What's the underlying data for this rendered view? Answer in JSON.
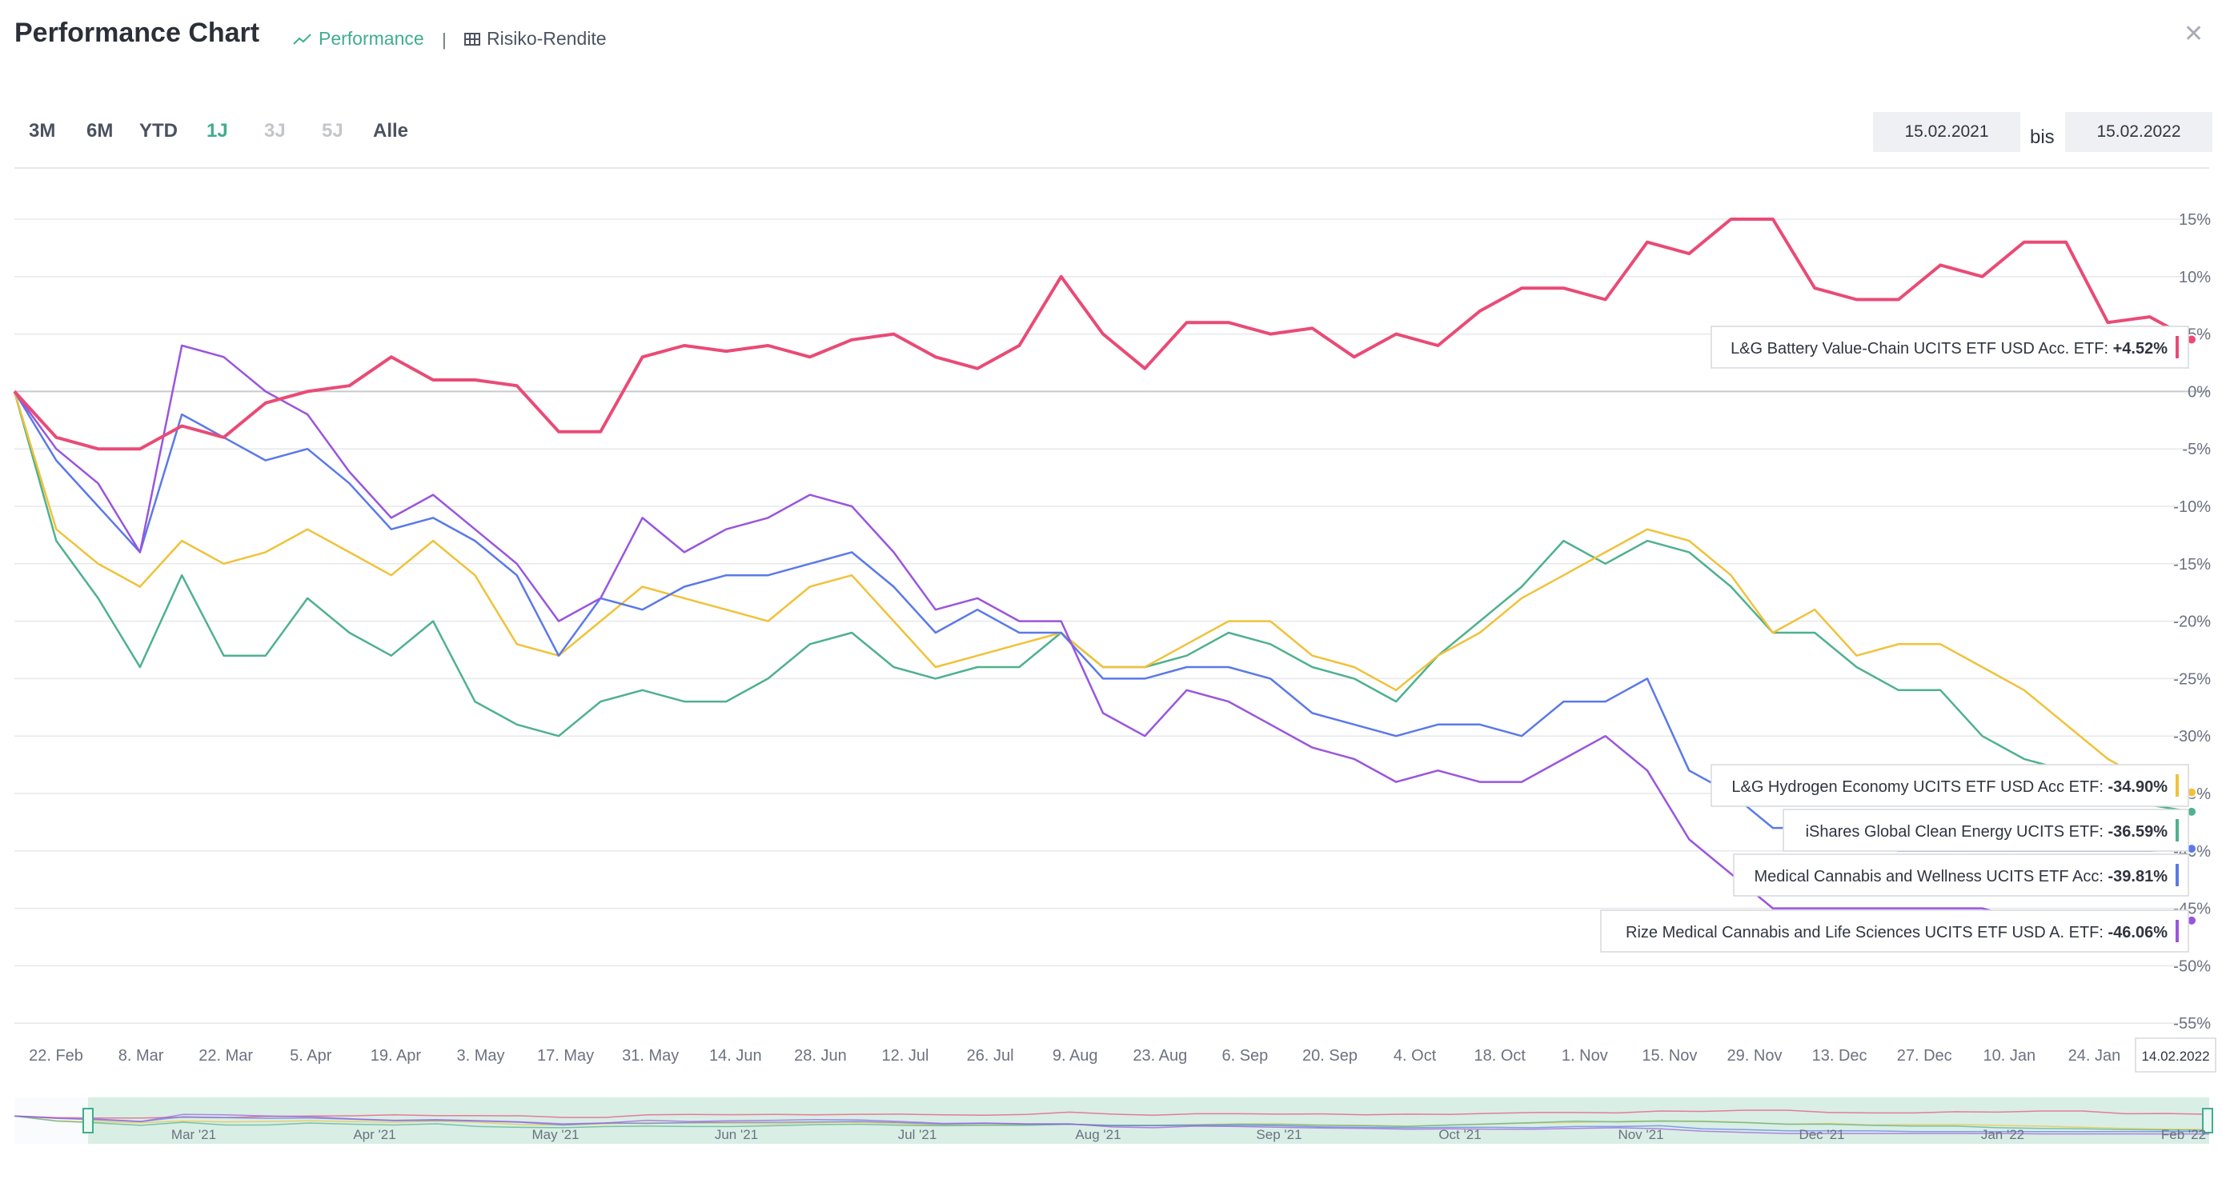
{
  "header": {
    "title": "Performance Chart",
    "tab_performance": "Performance",
    "tab_separator": "|",
    "tab_risk": "Risiko-Rendite"
  },
  "ranges": [
    {
      "label": "3M",
      "state": "normal"
    },
    {
      "label": "6M",
      "state": "normal"
    },
    {
      "label": "YTD",
      "state": "normal"
    },
    {
      "label": "1J",
      "state": "active"
    },
    {
      "label": "3J",
      "state": "disabled"
    },
    {
      "label": "5J",
      "state": "disabled"
    },
    {
      "label": "Alle",
      "state": "normal"
    }
  ],
  "date_range": {
    "from": "15.02.2021",
    "separator": "bis",
    "to": "15.02.2022"
  },
  "colors": {
    "battery": "#e94b76",
    "hydrogen": "#f0c23b",
    "clean_energy": "#4fb18e",
    "cannabis_wellness": "#5b79e8",
    "rize_cannabis": "#9a55dd",
    "accent": "#3fae8c"
  },
  "chart_data": {
    "type": "line",
    "y_unit": "%",
    "ylim": [
      -55,
      15
    ],
    "y_ticks": [
      "15%",
      "10%",
      "5%",
      "0%",
      "-5%",
      "-10%",
      "-15%",
      "-20%",
      "-25%",
      "-30%",
      "-35%",
      "-40%",
      "-45%",
      "-50%",
      "-55%"
    ],
    "x_ticks": [
      "22. Feb",
      "8. Mar",
      "22. Mar",
      "5. Apr",
      "19. Apr",
      "3. May",
      "17. May",
      "31. May",
      "14. Jun",
      "28. Jun",
      "12. Jul",
      "26. Jul",
      "9. Aug",
      "23. Aug",
      "6. Sep",
      "20. Sep",
      "4. Oct",
      "18. Oct",
      "1. Nov",
      "15. Nov",
      "29. Nov",
      "13. Dec",
      "27. Dec",
      "10. Jan",
      "24. Jan"
    ],
    "end_date_label": "14.02.2022",
    "navigator_labels": [
      "Mar '21",
      "Apr '21",
      "May '21",
      "Jun '21",
      "Jul '21",
      "Aug '21",
      "Sep '21",
      "Oct '21",
      "Nov '21",
      "Dec '21",
      "Jan '22",
      "Feb '22"
    ],
    "x": [
      "15.02.2021",
      "22.02.2021",
      "01.03.2021",
      "08.03.2021",
      "15.03.2021",
      "22.03.2021",
      "29.03.2021",
      "05.04.2021",
      "12.04.2021",
      "19.04.2021",
      "26.04.2021",
      "03.05.2021",
      "10.05.2021",
      "17.05.2021",
      "24.05.2021",
      "31.05.2021",
      "07.06.2021",
      "14.06.2021",
      "21.06.2021",
      "28.06.2021",
      "05.07.2021",
      "12.07.2021",
      "19.07.2021",
      "26.07.2021",
      "02.08.2021",
      "09.08.2021",
      "16.08.2021",
      "23.08.2021",
      "30.08.2021",
      "06.09.2021",
      "13.09.2021",
      "20.09.2021",
      "27.09.2021",
      "04.10.2021",
      "11.10.2021",
      "18.10.2021",
      "25.10.2021",
      "01.11.2021",
      "08.11.2021",
      "15.11.2021",
      "22.11.2021",
      "29.11.2021",
      "06.12.2021",
      "13.12.2021",
      "20.12.2021",
      "27.12.2021",
      "03.01.2022",
      "10.01.2022",
      "17.01.2022",
      "24.01.2022",
      "31.01.2022",
      "07.02.2022",
      "14.02.2022"
    ],
    "series": [
      {
        "key": "battery",
        "name": "L&G Battery Value-Chain UCITS ETF USD Acc. ETF",
        "last": "+4.52%",
        "values": [
          0,
          -4,
          -5,
          -5,
          -3,
          -4,
          -1,
          0,
          0.5,
          3,
          1,
          1,
          0.5,
          -3.5,
          -3.5,
          3,
          4,
          3.5,
          4,
          3,
          4.5,
          5,
          3,
          2,
          4,
          10,
          5,
          2,
          6,
          6,
          5,
          5.5,
          3,
          5,
          4,
          7,
          9,
          9,
          8,
          13,
          12,
          15,
          15,
          9,
          8,
          8,
          11,
          10,
          13,
          13,
          6,
          6.5,
          4.52
        ]
      },
      {
        "key": "hydrogen",
        "name": "L&G Hydrogen Economy UCITS ETF USD Acc ETF",
        "last": "-34.90%",
        "values": [
          0,
          -12,
          -15,
          -17,
          -13,
          -15,
          -14,
          -12,
          -14,
          -16,
          -13,
          -16,
          -22,
          -23,
          -20,
          -17,
          -18,
          -19,
          -20,
          -17,
          -16,
          -20,
          -24,
          -23,
          -22,
          -21,
          -24,
          -24,
          -22,
          -20,
          -20,
          -23,
          -24,
          -26,
          -23,
          -21,
          -18,
          -16,
          -14,
          -12,
          -13,
          -16,
          -21,
          -19,
          -23,
          -22,
          -22,
          -24,
          -26,
          -29,
          -32,
          -34,
          -34.9
        ]
      },
      {
        "key": "clean_energy",
        "name": "iShares Global Clean Energy UCITS ETF",
        "last": "-36.59%",
        "values": [
          0,
          -13,
          -18,
          -24,
          -16,
          -23,
          -23,
          -18,
          -21,
          -23,
          -20,
          -27,
          -29,
          -30,
          -27,
          -26,
          -27,
          -27,
          -25,
          -22,
          -21,
          -24,
          -25,
          -24,
          -24,
          -21,
          -24,
          -24,
          -23,
          -21,
          -22,
          -24,
          -25,
          -27,
          -23,
          -20,
          -17,
          -13,
          -15,
          -13,
          -14,
          -17,
          -21,
          -21,
          -24,
          -26,
          -26,
          -30,
          -32,
          -33,
          -35,
          -36,
          -36.59
        ]
      },
      {
        "key": "cannabis_wellness",
        "name": "Medical Cannabis and Wellness UCITS ETF Acc",
        "last": "-39.81%",
        "values": [
          0,
          -6,
          -10,
          -14,
          -2,
          -4,
          -6,
          -5,
          -8,
          -12,
          -11,
          -13,
          -16,
          -23,
          -18,
          -19,
          -17,
          -16,
          -16,
          -15,
          -14,
          -17,
          -21,
          -19,
          -21,
          -21,
          -25,
          -25,
          -24,
          -24,
          -25,
          -28,
          -29,
          -30,
          -29,
          -29,
          -30,
          -27,
          -27,
          -25,
          -33,
          -35,
          -38,
          -38,
          -38,
          -40,
          -40,
          -40,
          -40,
          -40,
          -40,
          -40,
          -39.81
        ]
      },
      {
        "key": "rize_cannabis",
        "name": "Rize Medical Cannabis and Life Sciences UCITS ETF USD A. ETF",
        "last": "-46.06%",
        "values": [
          0,
          -5,
          -8,
          -14,
          4,
          3,
          0,
          -2,
          -7,
          -11,
          -9,
          -12,
          -15,
          -20,
          -18,
          -11,
          -14,
          -12,
          -11,
          -9,
          -10,
          -14,
          -19,
          -18,
          -20,
          -20,
          -28,
          -30,
          -26,
          -27,
          -29,
          -31,
          -32,
          -34,
          -33,
          -34,
          -34,
          -32,
          -30,
          -33,
          -39,
          -42,
          -45,
          -45,
          -45,
          -45,
          -45,
          -45,
          -46,
          -46,
          -46,
          -46,
          -46.06
        ]
      }
    ]
  }
}
